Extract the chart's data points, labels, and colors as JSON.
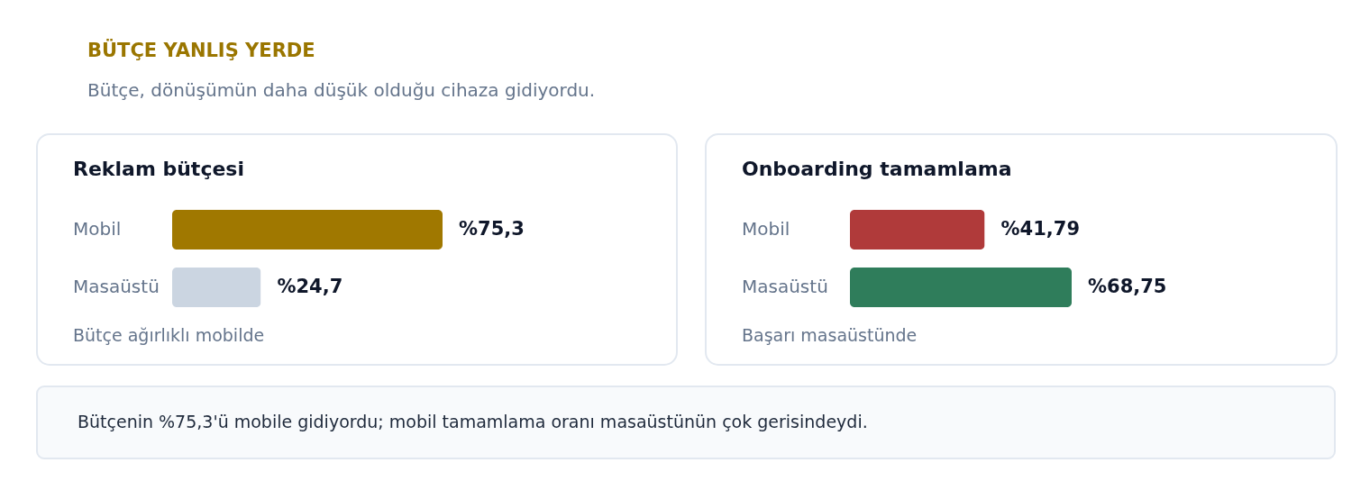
{
  "chart_data": [
    {
      "type": "other",
      "title": "BÜTÇE YANLIŞ YERDE",
      "subtitle": "Bütçe, dönüşümün daha düşük olduğu cihaza gidiyordu."
    },
    {
      "type": "bar",
      "orientation": "horizontal",
      "title": "Reklam bütçesi",
      "categories": [
        "Mobil",
        "Masaüstü"
      ],
      "values": [
        75.3,
        24.7
      ],
      "colors": [
        "#a07800",
        "#cbd5e1"
      ],
      "value_labels": [
        "%75,3",
        "%24,7"
      ],
      "tick_labels": "y",
      "annotations": [
        "Bütçe ağırlıklı mobilde"
      ]
    },
    {
      "type": "bar",
      "orientation": "horizontal",
      "title": "Onboarding tamamlama",
      "categories": [
        "Mobil",
        "Masaüstü"
      ],
      "values": [
        41.79,
        68.75
      ],
      "colors": [
        "#b03a3a",
        "#2f7d5b"
      ],
      "value_labels": [
        "%41,79",
        "%68,75"
      ],
      "tick_labels": "y",
      "annotations": [
        "Başarı masaüstünde"
      ]
    },
    {
      "type": "other",
      "annotations": [
        "Bütçenin %75,3'ü mobile gidiyordu; mobil tamamlama oranı masaüstünün çok gerisindeydi."
      ]
    }
  ]
}
